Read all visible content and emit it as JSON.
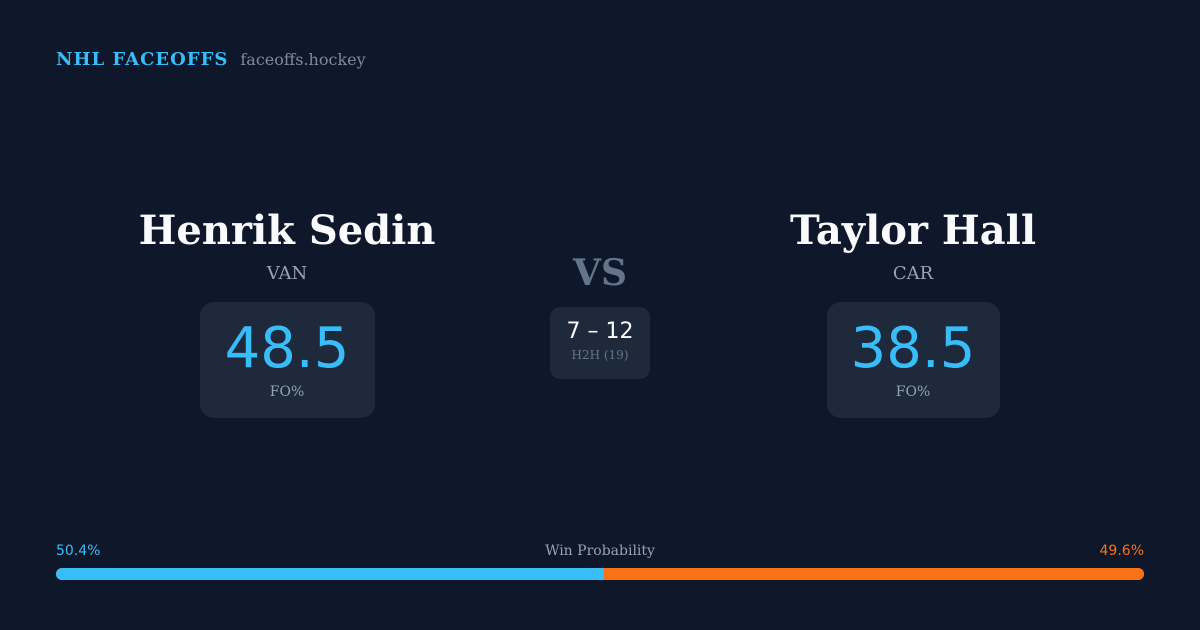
{
  "brand": {
    "name": "NHL FACEOFFS",
    "url": "faceoffs.hockey"
  },
  "player1": {
    "name": "Henrik Sedin",
    "team": "VAN",
    "fo": "48.5",
    "fo_label": "FO%"
  },
  "player2": {
    "name": "Taylor Hall",
    "team": "CAR",
    "fo": "38.5",
    "fo_label": "FO%"
  },
  "vs": "VS",
  "h2h": {
    "score": "7 – 12",
    "label": "H2H (19)"
  },
  "win_probability": {
    "title": "Win Probability",
    "left": "50.4%",
    "right": "49.6%",
    "left_value": 50.4,
    "colors": {
      "left": "#38bdf8",
      "right": "#f97316"
    }
  }
}
